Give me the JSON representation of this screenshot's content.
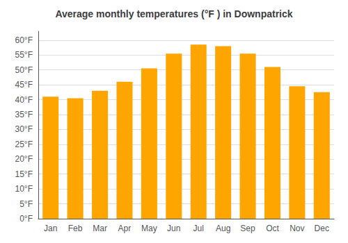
{
  "chart_data": {
    "type": "bar",
    "title": "Average monthly temperatures (°F ) in Downpatrick",
    "categories": [
      "Jan",
      "Feb",
      "Mar",
      "Apr",
      "May",
      "Jun",
      "Jul",
      "Aug",
      "Sep",
      "Oct",
      "Nov",
      "Dec"
    ],
    "values": [
      41,
      40.5,
      43,
      46,
      50.5,
      55.5,
      58.5,
      58,
      55.5,
      51,
      44.5,
      42.5
    ],
    "color": "#FFA500",
    "ylim": [
      0,
      63
    ],
    "yticks": [
      {
        "value": 0,
        "label": "0°F"
      },
      {
        "value": 5,
        "label": "5°F"
      },
      {
        "value": 10,
        "label": "10°F"
      },
      {
        "value": 15,
        "label": "15°F"
      },
      {
        "value": 20,
        "label": "20°F"
      },
      {
        "value": 25,
        "label": "25°F"
      },
      {
        "value": 30,
        "label": "30°F"
      },
      {
        "value": 35,
        "label": "35°F"
      },
      {
        "value": 40,
        "label": "40°F"
      },
      {
        "value": 45,
        "label": "45°F"
      },
      {
        "value": 50,
        "label": "50°F"
      },
      {
        "value": 55,
        "label": "55°F"
      },
      {
        "value": 60,
        "label": "60°F"
      }
    ],
    "grid": true
  }
}
